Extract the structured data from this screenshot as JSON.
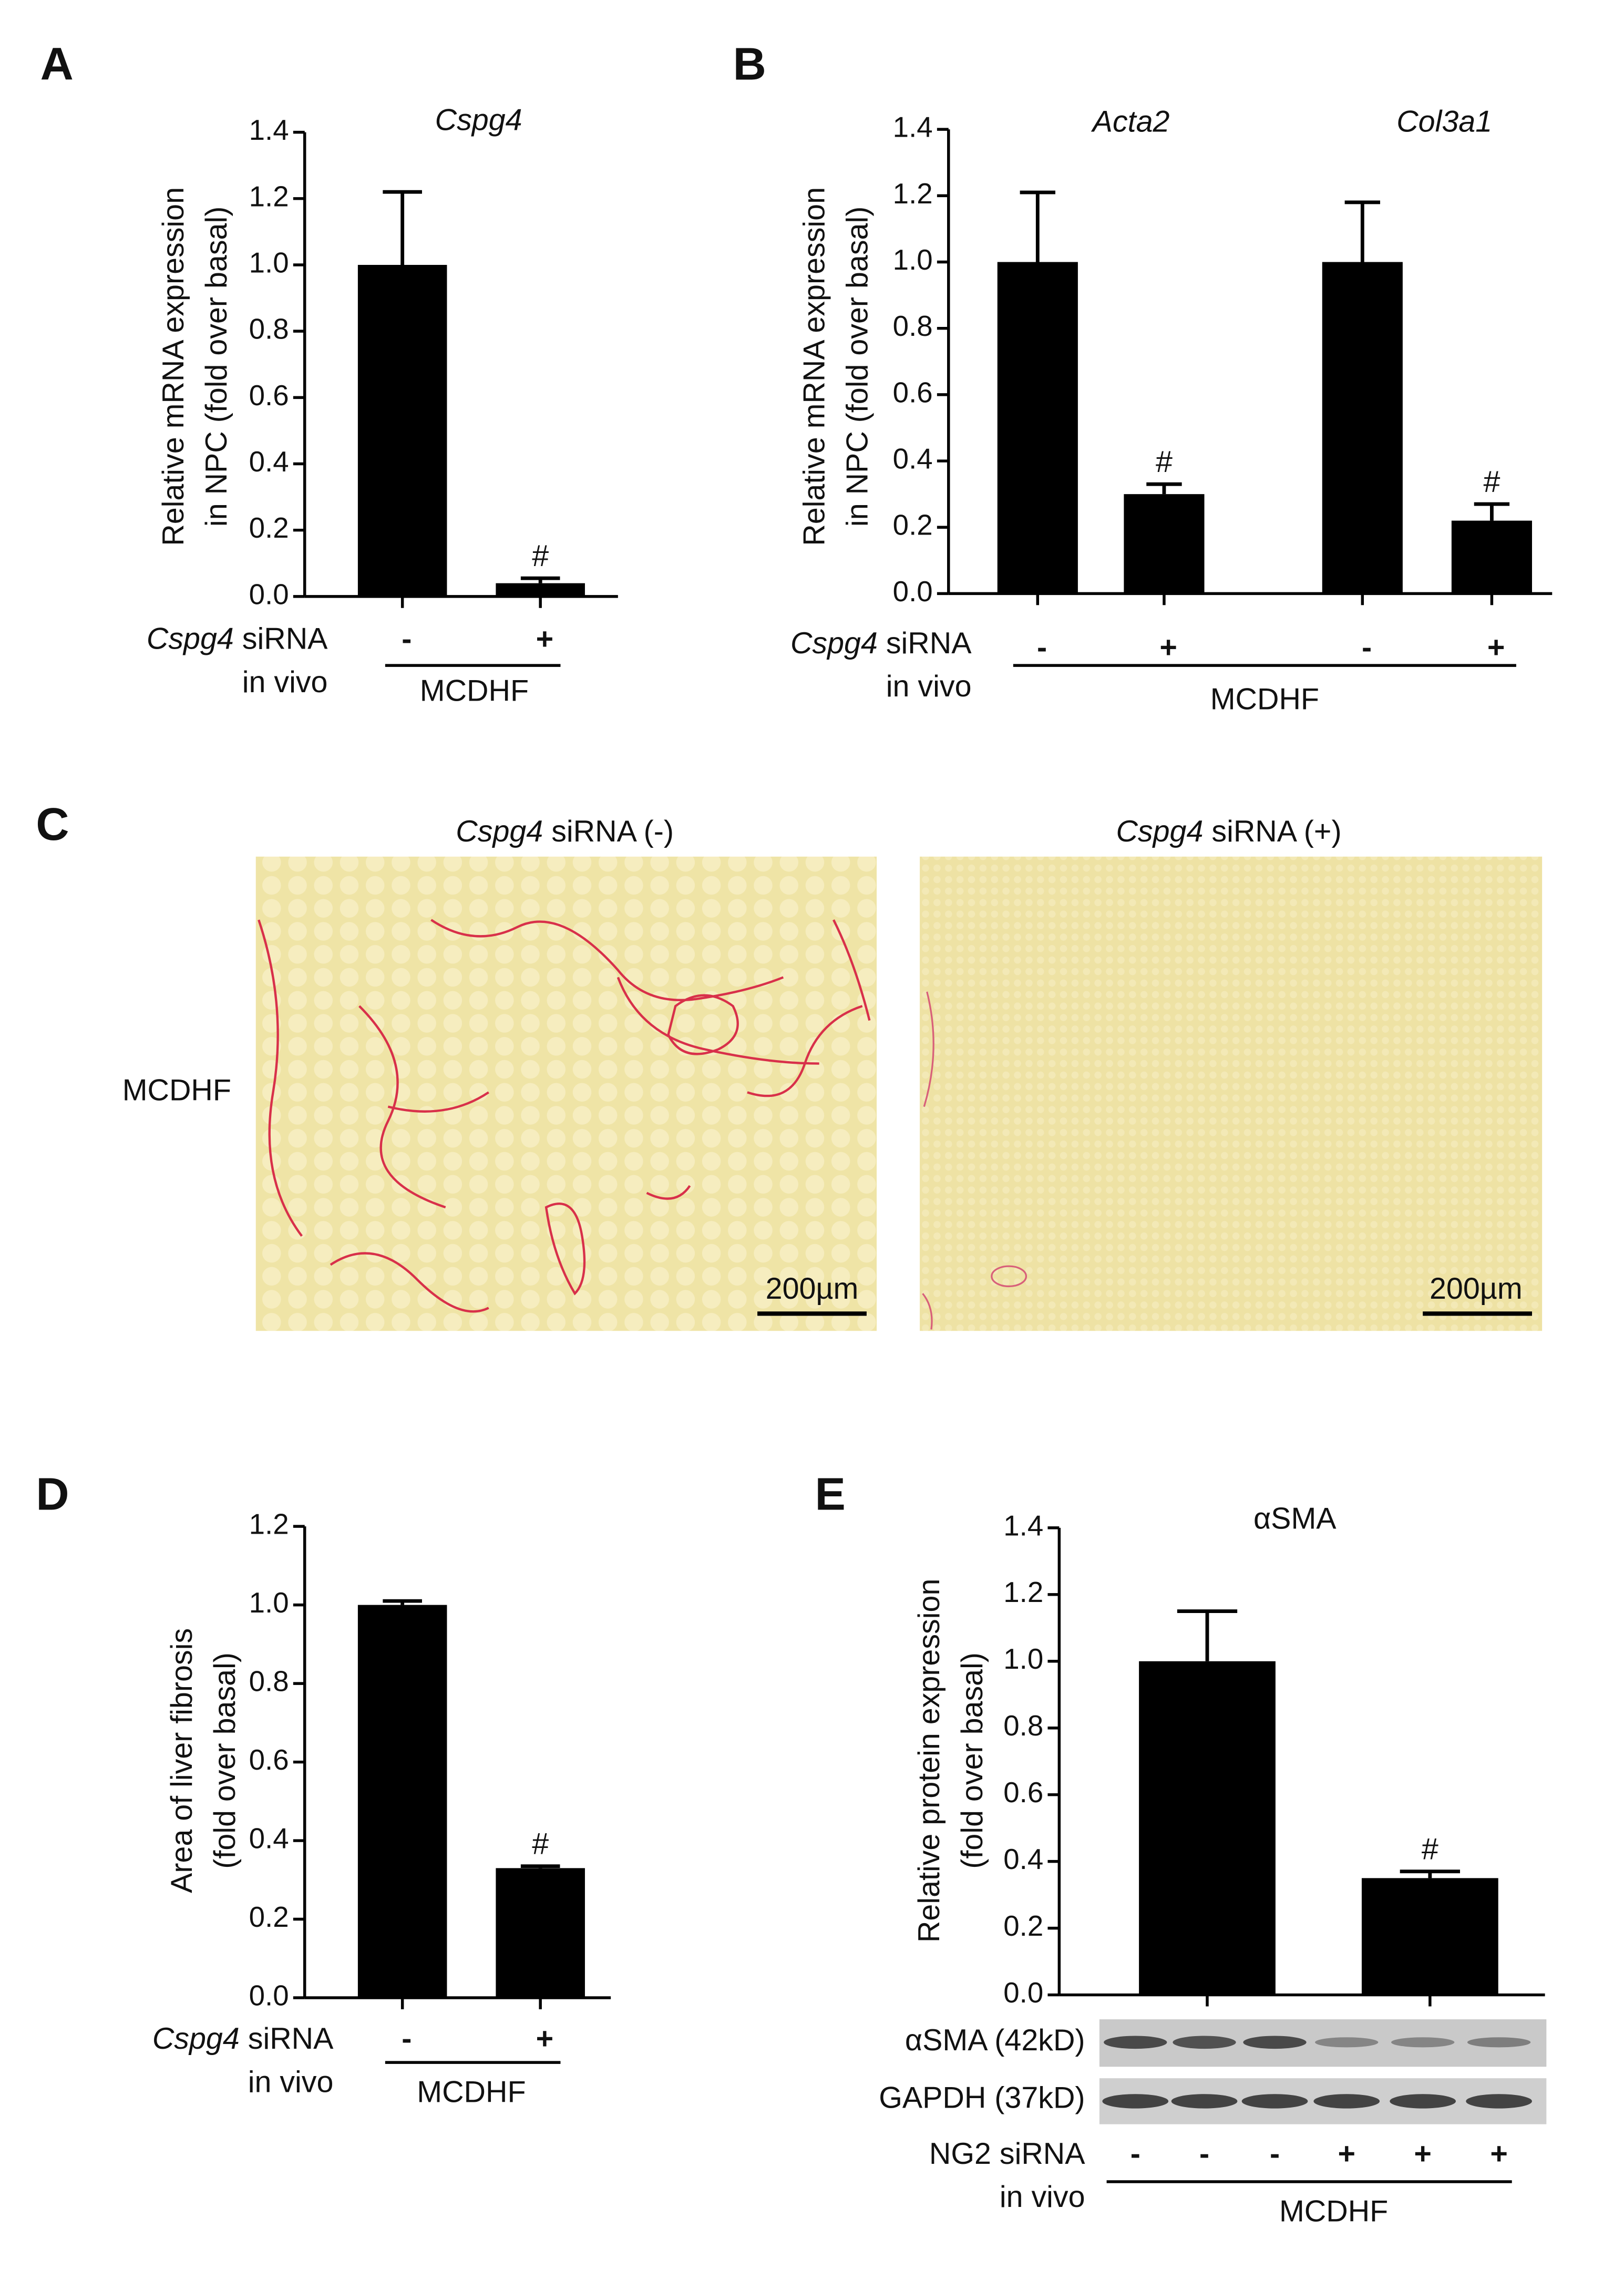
{
  "chart_data": [
    {
      "type": "bar",
      "panel_label": "A",
      "title": "Cspg4",
      "y_label": [
        "Relative mRNA expression",
        "in NPC (fold over basal)"
      ],
      "categories": [
        "-",
        "+"
      ],
      "values": [
        1.0,
        0.04
      ],
      "errors": [
        0.22,
        0.015
      ],
      "significance": [
        null,
        "#"
      ],
      "color": "#000000",
      "ylim": [
        0,
        1.4
      ],
      "yticks": [
        {
          "value": 0,
          "label": "0.0"
        },
        {
          "value": 0.2,
          "label": "0.2"
        },
        {
          "value": 0.4,
          "label": "0.4"
        },
        {
          "value": 0.6,
          "label": "0.6"
        },
        {
          "value": 0.8,
          "label": "0.8"
        },
        {
          "value": 1,
          "label": "1.0"
        },
        {
          "value": 1.2,
          "label": "1.2"
        },
        {
          "value": 1.4,
          "label": "1.4"
        }
      ],
      "row_label_gene": "Cspg4",
      "row_label": "siRNA",
      "row_label_2": "in vivo",
      "group_label": "MCDHF"
    },
    {
      "type": "bar",
      "panel_label": "B",
      "titles": [
        "Acta2",
        "Col3a1"
      ],
      "y_label": [
        "Relative mRNA expression",
        "in NPC (fold over basal)"
      ],
      "categories": [
        "-",
        "+",
        "-",
        "+"
      ],
      "values": [
        1.0,
        0.3,
        1.0,
        0.22
      ],
      "errors": [
        0.21,
        0.03,
        0.18,
        0.05
      ],
      "significance": [
        null,
        "#",
        null,
        "#"
      ],
      "color": "#000000",
      "ylim": [
        0,
        1.4
      ],
      "yticks": [
        {
          "value": 0,
          "label": "0.0"
        },
        {
          "value": 0.2,
          "label": "0.2"
        },
        {
          "value": 0.4,
          "label": "0.4"
        },
        {
          "value": 0.6,
          "label": "0.6"
        },
        {
          "value": 0.8,
          "label": "0.8"
        },
        {
          "value": 1,
          "label": "1.0"
        },
        {
          "value": 1.2,
          "label": "1.2"
        },
        {
          "value": 1.4,
          "label": "1.4"
        }
      ],
      "row_label_gene": "Cspg4",
      "row_label": "siRNA",
      "row_label_2": "in vivo",
      "group_label": "MCDHF"
    },
    {
      "type": "bar",
      "panel_label": "D",
      "y_label": [
        "Area of liver fibrosis",
        "(fold over basal)"
      ],
      "categories": [
        "-",
        "+"
      ],
      "values": [
        1.0,
        0.33
      ],
      "errors": [
        0.01,
        0.005
      ],
      "significance": [
        null,
        "#"
      ],
      "color": "#000000",
      "ylim": [
        0,
        1.2
      ],
      "yticks": [
        {
          "value": 0,
          "label": "0.0"
        },
        {
          "value": 0.2,
          "label": "0.2"
        },
        {
          "value": 0.4,
          "label": "0.4"
        },
        {
          "value": 0.6,
          "label": "0.6"
        },
        {
          "value": 0.8,
          "label": "0.8"
        },
        {
          "value": 1,
          "label": "1.0"
        },
        {
          "value": 1.2,
          "label": "1.2"
        }
      ],
      "row_label_gene": "Cspg4",
      "row_label": "siRNA",
      "row_label_2": "in vivo",
      "group_label": "MCDHF"
    },
    {
      "type": "bar",
      "panel_label": "E",
      "title": "αSMA",
      "y_label": [
        "Relative protein expression",
        "(fold over basal)"
      ],
      "values": [
        1.0,
        0.35
      ],
      "errors": [
        0.15,
        0.02
      ],
      "significance": [
        null,
        "#"
      ],
      "color": "#000000",
      "ylim": [
        0,
        1.4
      ],
      "yticks": [
        {
          "value": 0,
          "label": "0.0"
        },
        {
          "value": 0.2,
          "label": "0.2"
        },
        {
          "value": 0.4,
          "label": "0.4"
        },
        {
          "value": 0.6,
          "label": "0.6"
        },
        {
          "value": 0.8,
          "label": "0.8"
        },
        {
          "value": 1,
          "label": "1.0"
        },
        {
          "value": 1.2,
          "label": "1.2"
        },
        {
          "value": 1.4,
          "label": "1.4"
        }
      ],
      "blot_rows": [
        "αSMA (42kD)",
        "GAPDH (37kD)"
      ],
      "lanes": [
        "-",
        "-",
        "-",
        "+",
        "+",
        "+"
      ],
      "row_label": "NG2 siRNA",
      "row_label_2": "in vivo",
      "group_label": "MCDHF"
    }
  ],
  "micrographs": {
    "panel_label": "C",
    "row_label": "MCDHF",
    "columns": [
      {
        "gene": "Cspg4",
        "label": "siRNA (-)",
        "scale_bar": "200µm"
      },
      {
        "gene": "Cspg4",
        "label": "siRNA (+)",
        "scale_bar": "200µm"
      }
    ]
  }
}
